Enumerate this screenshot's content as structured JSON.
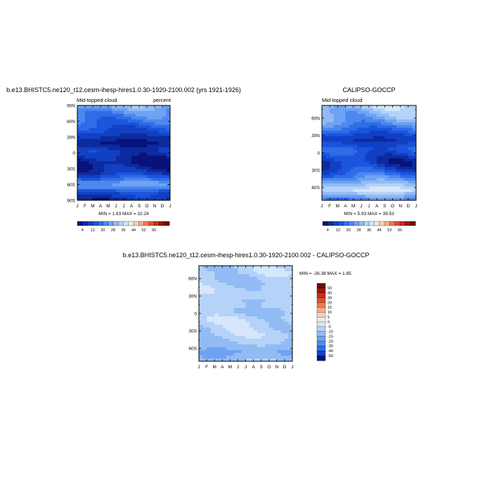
{
  "chart_data": [
    {
      "type": "heatmap",
      "title": "b.e13.BHISTC5.ne120_t12.cesm-ihesp-hires1.0.30-1920-2100.002 (yrs 1921-1926)",
      "left_string": "Mid-topped cloud",
      "right_string": "percent",
      "stats": "MIN =   1.83 MAX =  32.24",
      "x_ticks": [
        "J",
        "F",
        "M",
        "A",
        "M",
        "J",
        "J",
        "A",
        "S",
        "O",
        "N",
        "D",
        "J"
      ],
      "y_ticks": [
        "90N",
        "60N",
        "30N",
        "0",
        "30S",
        "60S",
        "90S"
      ],
      "ylim": [
        -90,
        90
      ],
      "colorbar_labels": [
        "4",
        "12",
        "20",
        "28",
        "36",
        "44",
        "52",
        "60"
      ],
      "lat_profile": [
        {
          "lat": 90,
          "v": 30
        },
        {
          "lat": 80,
          "v": 24
        },
        {
          "lat": 70,
          "v": 21
        },
        {
          "lat": 60,
          "v": 18
        },
        {
          "lat": 48,
          "v": 14
        },
        {
          "lat": 38,
          "v": 11
        },
        {
          "lat": 28,
          "v": 6
        },
        {
          "lat": 18,
          "v": 3
        },
        {
          "lat": 12,
          "v": 6
        },
        {
          "lat": 5,
          "v": 9
        },
        {
          "lat": -3,
          "v": 8
        },
        {
          "lat": -10,
          "v": 5
        },
        {
          "lat": -18,
          "v": 3
        },
        {
          "lat": -28,
          "v": 5
        },
        {
          "lat": -40,
          "v": 10
        },
        {
          "lat": -50,
          "v": 18
        },
        {
          "lat": -58,
          "v": 26
        },
        {
          "lat": -66,
          "v": 22
        },
        {
          "lat": -75,
          "v": 12
        },
        {
          "lat": -90,
          "v": 6
        }
      ]
    },
    {
      "type": "heatmap",
      "title": "CALIPSO-GOCCP",
      "left_string": "Mid-topped cloud",
      "right_string": "",
      "stats": "MIN =   5.93 MAX =  39.53",
      "x_ticks": [
        "J",
        "F",
        "M",
        "A",
        "M",
        "J",
        "J",
        "A",
        "S",
        "O",
        "N",
        "D",
        "J"
      ],
      "y_ticks": [
        "60N",
        "30N",
        "0",
        "30S",
        "60S"
      ],
      "ylim": [
        -82,
        82
      ],
      "colorbar_labels": [
        "4",
        "12",
        "20",
        "28",
        "36",
        "44",
        "52",
        "60"
      ],
      "lat_profile": [
        {
          "lat": 82,
          "v": 34
        },
        {
          "lat": 72,
          "v": 30
        },
        {
          "lat": 62,
          "v": 28
        },
        {
          "lat": 52,
          "v": 24
        },
        {
          "lat": 42,
          "v": 18
        },
        {
          "lat": 32,
          "v": 12
        },
        {
          "lat": 22,
          "v": 8
        },
        {
          "lat": 14,
          "v": 12
        },
        {
          "lat": 6,
          "v": 16
        },
        {
          "lat": 0,
          "v": 14
        },
        {
          "lat": -8,
          "v": 10
        },
        {
          "lat": -18,
          "v": 8
        },
        {
          "lat": -28,
          "v": 12
        },
        {
          "lat": -38,
          "v": 18
        },
        {
          "lat": -48,
          "v": 26
        },
        {
          "lat": -56,
          "v": 32
        },
        {
          "lat": -64,
          "v": 38
        },
        {
          "lat": -72,
          "v": 30
        },
        {
          "lat": -82,
          "v": 20
        }
      ]
    },
    {
      "type": "heatmap",
      "title": "b.e13.BHISTC5.ne120_t12.cesm-ihesp-hires1.0.30-1920-2100.002 - CALIPSO-GOCCP",
      "left_string": "",
      "right_string": "",
      "stats": "MIN = -26.38 MAX =   1.85",
      "x_ticks": [
        "J",
        "F",
        "M",
        "A",
        "M",
        "J",
        "J",
        "A",
        "S",
        "O",
        "N",
        "D",
        "J"
      ],
      "y_ticks": [
        "60N",
        "30N",
        "0",
        "30S",
        "60S"
      ],
      "ylim": [
        -82,
        82
      ],
      "colorbar_labels": [
        "50",
        "40",
        "30",
        "20",
        "15",
        "10",
        "5",
        "0",
        "-5",
        "-10",
        "-15",
        "-20",
        "-30",
        "-40",
        "-50"
      ],
      "lat_profile": [
        {
          "lat": 82,
          "v": -8
        },
        {
          "lat": 70,
          "v": -7
        },
        {
          "lat": 58,
          "v": -10
        },
        {
          "lat": 46,
          "v": -8
        },
        {
          "lat": 34,
          "v": -7
        },
        {
          "lat": 22,
          "v": -9
        },
        {
          "lat": 12,
          "v": -8
        },
        {
          "lat": 4,
          "v": -11
        },
        {
          "lat": -4,
          "v": -8
        },
        {
          "lat": -14,
          "v": -6
        },
        {
          "lat": -24,
          "v": -8
        },
        {
          "lat": -36,
          "v": -7
        },
        {
          "lat": -46,
          "v": -9
        },
        {
          "lat": -56,
          "v": -12
        },
        {
          "lat": -66,
          "v": -16
        },
        {
          "lat": -74,
          "v": -14
        },
        {
          "lat": -82,
          "v": -10
        }
      ]
    }
  ],
  "colors": {
    "sequential": [
      "#08127a",
      "#0c2b9e",
      "#1240c4",
      "#1a55dc",
      "#2f6de8",
      "#4d88ee",
      "#6fa2f2",
      "#92bbf5",
      "#b5d2f8",
      "#d6e6fb",
      "#f6e8e0",
      "#f7cfc0",
      "#f2ab90",
      "#ea7c58",
      "#dc5030",
      "#c4301c",
      "#9c160e",
      "#6e0a08"
    ],
    "diverging": [
      "#6e0a08",
      "#9c160e",
      "#c4301c",
      "#dc5030",
      "#ea7c58",
      "#f2ab90",
      "#f7cfc0",
      "#f6e8e0",
      "#d6e6fb",
      "#b5d2f8",
      "#92bbf5",
      "#6fa2f2",
      "#4d88ee",
      "#2f6de8",
      "#1240c4",
      "#08127a"
    ]
  }
}
